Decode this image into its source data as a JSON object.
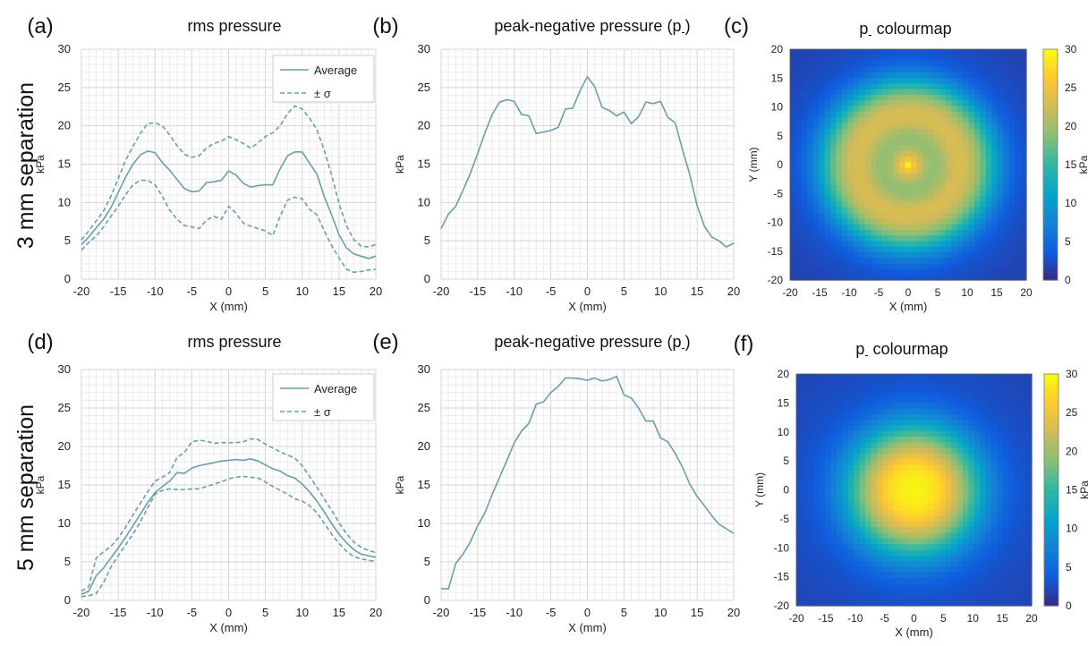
{
  "row_labels": [
    "3 mm separation",
    "5 mm separation"
  ],
  "colormap": {
    "name": "parula",
    "stops": [
      "#352a87",
      "#0f5cdd",
      "#1481d6",
      "#06a4ca",
      "#2eb7a4",
      "#87bf77",
      "#d1bb59",
      "#fec832",
      "#f9fb0e"
    ]
  },
  "chart_data": [
    {
      "id": "a",
      "type": "line",
      "panel_label": "(a)",
      "title": "rms pressure",
      "xlabel": "X (mm)",
      "ylabel": "kPa",
      "xlim": [
        -20,
        20
      ],
      "ylim": [
        0,
        30
      ],
      "xticks": [
        -20,
        -15,
        -10,
        -5,
        0,
        5,
        10,
        15,
        20
      ],
      "yticks": [
        0,
        5,
        10,
        15,
        20,
        25,
        30
      ],
      "grid": true,
      "legend": "top-right",
      "line_color": "#6a9fa8",
      "x": [
        -20,
        -19,
        -18,
        -17,
        -16,
        -15,
        -14,
        -13,
        -12,
        -11,
        -10,
        -9,
        -8,
        -7,
        -6,
        -5,
        -4,
        -3,
        -2,
        -1,
        0,
        1,
        2,
        3,
        4,
        5,
        6,
        7,
        8,
        9,
        10,
        11,
        12,
        13,
        14,
        15,
        16,
        17,
        18,
        19,
        20
      ],
      "series": [
        {
          "name": "Average",
          "style": "solid",
          "values": [
            4.5,
            5.5,
            6.7,
            7.8,
            9.3,
            11.3,
            13.3,
            15,
            16.2,
            16.7,
            16.5,
            15.2,
            14.2,
            13,
            11.8,
            11.4,
            11.5,
            12.6,
            12.7,
            12.9,
            14.1,
            13.6,
            12.5,
            12.0,
            12.2,
            12.3,
            12.3,
            14.4,
            16.1,
            16.6,
            16.6,
            15.1,
            13.7,
            10.8,
            8.4,
            5.8,
            4.1,
            3.3,
            3.0,
            2.7,
            3.0
          ]
        },
        {
          "name": "± σ",
          "style": "dashed",
          "values": [
            5.1,
            6.3,
            7.6,
            8.9,
            10.8,
            13.1,
            15.5,
            17.3,
            19.0,
            20.3,
            20.4,
            20.0,
            18.8,
            17.4,
            16.3,
            15.9,
            16.1,
            17.1,
            17.7,
            18.0,
            18.6,
            18.2,
            17.7,
            17.1,
            17.8,
            18.6,
            19.1,
            20.0,
            21.6,
            22.6,
            22.2,
            21.0,
            19.5,
            16.8,
            13.6,
            9.9,
            7.0,
            5.2,
            4.3,
            4.2,
            4.5
          ]
        },
        {
          "name": "",
          "style": "dashed",
          "values": [
            3.8,
            4.8,
            5.6,
            6.8,
            8.2,
            9.5,
            11.0,
            12.3,
            12.9,
            12.9,
            12.3,
            10.8,
            9.0,
            7.8,
            7.0,
            6.8,
            6.6,
            7.7,
            8.2,
            7.8,
            9.5,
            8.6,
            7.3,
            6.9,
            6.6,
            6.3,
            5.7,
            8.2,
            10.3,
            10.7,
            10.5,
            9.1,
            8.4,
            6.3,
            4.4,
            2.8,
            1.3,
            0.9,
            1.0,
            1.2,
            1.3
          ]
        }
      ]
    },
    {
      "id": "b",
      "type": "line",
      "panel_label": "(b)",
      "title": "peak-negative pressure (p-)",
      "xlabel": "X (mm)",
      "ylabel": "kPa",
      "xlim": [
        -20,
        20
      ],
      "ylim": [
        0,
        30
      ],
      "xticks": [
        -20,
        -15,
        -10,
        -5,
        0,
        5,
        10,
        15,
        20
      ],
      "yticks": [
        0,
        5,
        10,
        15,
        20,
        25,
        30
      ],
      "grid": true,
      "line_color": "#6a9fa8",
      "x": [
        -20,
        -19,
        -18,
        -17,
        -16,
        -15,
        -14,
        -13,
        -12,
        -11,
        -10,
        -9,
        -8,
        -7,
        -6,
        -5,
        -4,
        -3,
        -2,
        -1,
        0,
        1,
        2,
        3,
        4,
        5,
        6,
        7,
        8,
        9,
        10,
        11,
        12,
        13,
        14,
        15,
        16,
        17,
        18,
        19,
        20
      ],
      "series": [
        {
          "name": "",
          "style": "solid",
          "values": [
            6.6,
            8.5,
            9.5,
            11.6,
            13.8,
            16.4,
            19.1,
            21.5,
            23.1,
            23.4,
            23.2,
            21.5,
            21.3,
            19.0,
            19.2,
            19.4,
            19.8,
            22.2,
            22.3,
            24.6,
            26.4,
            25.1,
            22.4,
            22.0,
            21.3,
            21.8,
            20.3,
            21.2,
            23.1,
            22.9,
            23.2,
            21.1,
            20.4,
            16.9,
            13.6,
            9.6,
            6.9,
            5.5,
            5.0,
            4.2,
            4.7
          ]
        }
      ]
    },
    {
      "id": "c",
      "type": "heatmap",
      "panel_label": "(c)",
      "title": "p- colourmap",
      "xlabel": "X (mm)",
      "ylabel": "Y (mm)",
      "colorbar_label": "kPa",
      "xlim": [
        -20,
        20
      ],
      "ylim": [
        -20,
        20
      ],
      "clim": [
        0,
        30
      ],
      "xticks": [
        -20,
        -15,
        -10,
        -5,
        0,
        5,
        10,
        15,
        20
      ],
      "yticks": [
        -20,
        -15,
        -10,
        -5,
        0,
        5,
        10,
        15,
        20
      ],
      "cticks": [
        0,
        5,
        10,
        15,
        20,
        25,
        30
      ],
      "radial_profile": {
        "r": [
          0,
          1,
          2,
          3,
          4,
          5,
          6,
          7,
          8,
          9,
          10,
          11,
          12,
          13,
          14,
          15,
          16,
          17,
          18,
          19,
          20,
          22,
          25,
          29
        ],
        "kPa": [
          29,
          25.5,
          22.5,
          20.5,
          19.5,
          19.5,
          20.5,
          22,
          23,
          23,
          22.5,
          21,
          19,
          16.5,
          13.5,
          10.5,
          8,
          6,
          4.5,
          3.5,
          3,
          2.5,
          2,
          1.8
        ]
      }
    },
    {
      "id": "d",
      "type": "line",
      "panel_label": "(d)",
      "title": "rms pressure",
      "xlabel": "X (mm)",
      "ylabel": "kPa",
      "xlim": [
        -20,
        20
      ],
      "ylim": [
        0,
        30
      ],
      "xticks": [
        -20,
        -15,
        -10,
        -5,
        0,
        5,
        10,
        15,
        20
      ],
      "yticks": [
        0,
        5,
        10,
        15,
        20,
        25,
        30
      ],
      "grid": true,
      "legend": "top-right",
      "line_color": "#6a9fa8",
      "x": [
        -20,
        -19,
        -18,
        -17,
        -16,
        -15,
        -14,
        -13,
        -12,
        -11,
        -10,
        -9,
        -8,
        -7,
        -6,
        -5,
        -4,
        -3,
        -2,
        -1,
        0,
        1,
        2,
        3,
        4,
        5,
        6,
        7,
        8,
        9,
        10,
        11,
        12,
        13,
        14,
        15,
        16,
        17,
        18,
        19,
        20
      ],
      "series": [
        {
          "name": "Average",
          "style": "solid",
          "values": [
            0.8,
            1.2,
            3.2,
            4.2,
            5.5,
            6.8,
            8.2,
            9.7,
            11.2,
            12.7,
            14.0,
            14.8,
            15.5,
            16.6,
            16.5,
            17.2,
            17.5,
            17.7,
            17.9,
            18.1,
            18.2,
            18.3,
            18.2,
            18.4,
            18.1,
            17.6,
            17.1,
            16.8,
            16.2,
            15.9,
            15.1,
            14.1,
            12.9,
            11.5,
            10.0,
            8.6,
            7.5,
            6.6,
            6.0,
            5.8,
            5.6
          ]
        },
        {
          "name": "± σ",
          "style": "dashed",
          "values": [
            1.2,
            1.8,
            5.5,
            6.3,
            7.0,
            8.1,
            9.5,
            11.1,
            12.6,
            14.1,
            15.5,
            16.0,
            16.6,
            18.6,
            19.2,
            20.6,
            20.8,
            20.7,
            20.4,
            20.5,
            20.5,
            20.5,
            20.6,
            21.0,
            20.9,
            20.3,
            19.8,
            19.3,
            18.9,
            18.5,
            17.5,
            16.1,
            14.7,
            13.2,
            11.7,
            10.1,
            8.7,
            7.6,
            6.9,
            6.5,
            6.2
          ]
        },
        {
          "name": "",
          "style": "dashed",
          "values": [
            0.5,
            0.6,
            0.9,
            2.3,
            4.3,
            5.8,
            7.2,
            8.6,
            10.2,
            12.0,
            13.8,
            14.3,
            14.5,
            14.4,
            14.4,
            14.5,
            14.5,
            14.8,
            15.1,
            15.4,
            15.8,
            16.0,
            16.1,
            16.0,
            15.9,
            15.4,
            14.8,
            14.3,
            13.8,
            13.2,
            12.9,
            12.3,
            11.4,
            10.0,
            8.6,
            7.4,
            6.4,
            5.7,
            5.4,
            5.2,
            5.1
          ]
        }
      ]
    },
    {
      "id": "e",
      "type": "line",
      "panel_label": "(e)",
      "title": "peak-negative pressure (p-)",
      "xlabel": "X (mm)",
      "ylabel": "kPa",
      "xlim": [
        -20,
        20
      ],
      "ylim": [
        0,
        30
      ],
      "xticks": [
        -20,
        -15,
        -10,
        -5,
        0,
        5,
        10,
        15,
        20
      ],
      "yticks": [
        0,
        5,
        10,
        15,
        20,
        25,
        30
      ],
      "grid": true,
      "line_color": "#6a9fa8",
      "x": [
        -20,
        -19,
        -18,
        -17,
        -16,
        -15,
        -14,
        -13,
        -12,
        -11,
        -10,
        -9,
        -8,
        -7,
        -6,
        -5,
        -4,
        -3,
        -2,
        -1,
        0,
        1,
        2,
        3,
        4,
        5,
        6,
        7,
        8,
        9,
        10,
        11,
        12,
        13,
        14,
        15,
        16,
        17,
        18,
        19,
        20
      ],
      "series": [
        {
          "name": "",
          "style": "solid",
          "values": [
            1.5,
            1.5,
            4.8,
            6.0,
            7.6,
            9.7,
            11.4,
            13.8,
            16.0,
            18.2,
            20.5,
            22.0,
            23.0,
            25.5,
            25.8,
            27.0,
            27.8,
            28.9,
            28.9,
            28.8,
            28.6,
            28.9,
            28.5,
            28.7,
            29.1,
            26.7,
            26.3,
            25.0,
            23.3,
            23.3,
            21.1,
            20.6,
            19.1,
            17.3,
            15.1,
            13.5,
            12.3,
            11.0,
            9.9,
            9.3,
            8.7
          ]
        }
      ]
    },
    {
      "id": "f",
      "type": "heatmap",
      "panel_label": "(f)",
      "title": "p- colourmap",
      "xlabel": "X (mm)",
      "ylabel": "Y (mm)",
      "colorbar_label": "kPa",
      "xlim": [
        -20,
        20
      ],
      "ylim": [
        -20,
        20
      ],
      "clim": [
        0,
        30
      ],
      "xticks": [
        -20,
        -15,
        -10,
        -5,
        0,
        5,
        10,
        15,
        20
      ],
      "yticks": [
        -20,
        -15,
        -10,
        -5,
        0,
        5,
        10,
        15,
        20
      ],
      "cticks": [
        0,
        5,
        10,
        15,
        20,
        25,
        30
      ],
      "radial_profile": {
        "r": [
          0,
          2,
          4,
          5,
          6,
          7,
          8,
          9,
          10,
          11,
          12,
          13,
          14,
          15,
          16,
          17,
          18,
          20,
          22,
          25,
          29
        ],
        "kPa": [
          29.5,
          29,
          27.8,
          26.5,
          24.5,
          22.5,
          20.5,
          18,
          15.5,
          13,
          10.5,
          8.5,
          7,
          5.5,
          4.5,
          3.8,
          3.2,
          2.8,
          2.5,
          2.2,
          2
        ]
      }
    }
  ]
}
